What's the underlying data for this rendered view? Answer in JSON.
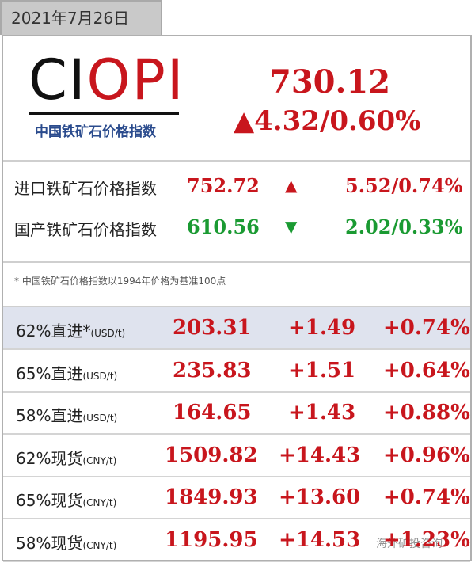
{
  "header": {
    "date": "2021年7月26日"
  },
  "logo": {
    "part1": "CI",
    "part2": "OPI",
    "subtitle": "中国铁矿石价格指数"
  },
  "index": {
    "value": "730.12",
    "change": "▲4.32/0.60%"
  },
  "sub_indices": [
    {
      "name": "进口铁矿石价格指数",
      "value": "752.72",
      "arrow": "▲",
      "change": "5.52/0.74%"
    },
    {
      "name": "国产铁矿石价格指数",
      "value": "610.56",
      "arrow": "▼",
      "change": "2.02/0.33%"
    }
  ],
  "note": "* 中国铁矿石价格指数以1994年价格为基准100点",
  "table": {
    "rows": [
      [
        "62%直进*",
        "(USD/t)",
        "203.31",
        "+1.49",
        "+0.74%"
      ],
      [
        "65%直进",
        "(USD/t)",
        "235.83",
        "+1.51",
        "+0.64%"
      ],
      [
        "58%直进",
        "(USD/t)",
        "164.65",
        "+1.43",
        "+0.88%"
      ],
      [
        "62%现货",
        "(CNY/t)",
        "1509.82",
        "+14.43",
        "+0.96%"
      ],
      [
        "65%现货",
        "(CNY/t)",
        "1849.93",
        "+13.60",
        "+0.74%"
      ],
      [
        "58%现货",
        "(CNY/t)",
        "1195.95",
        "+14.53",
        "+1.23%"
      ]
    ]
  },
  "watermark": "海外矿投咨询"
}
